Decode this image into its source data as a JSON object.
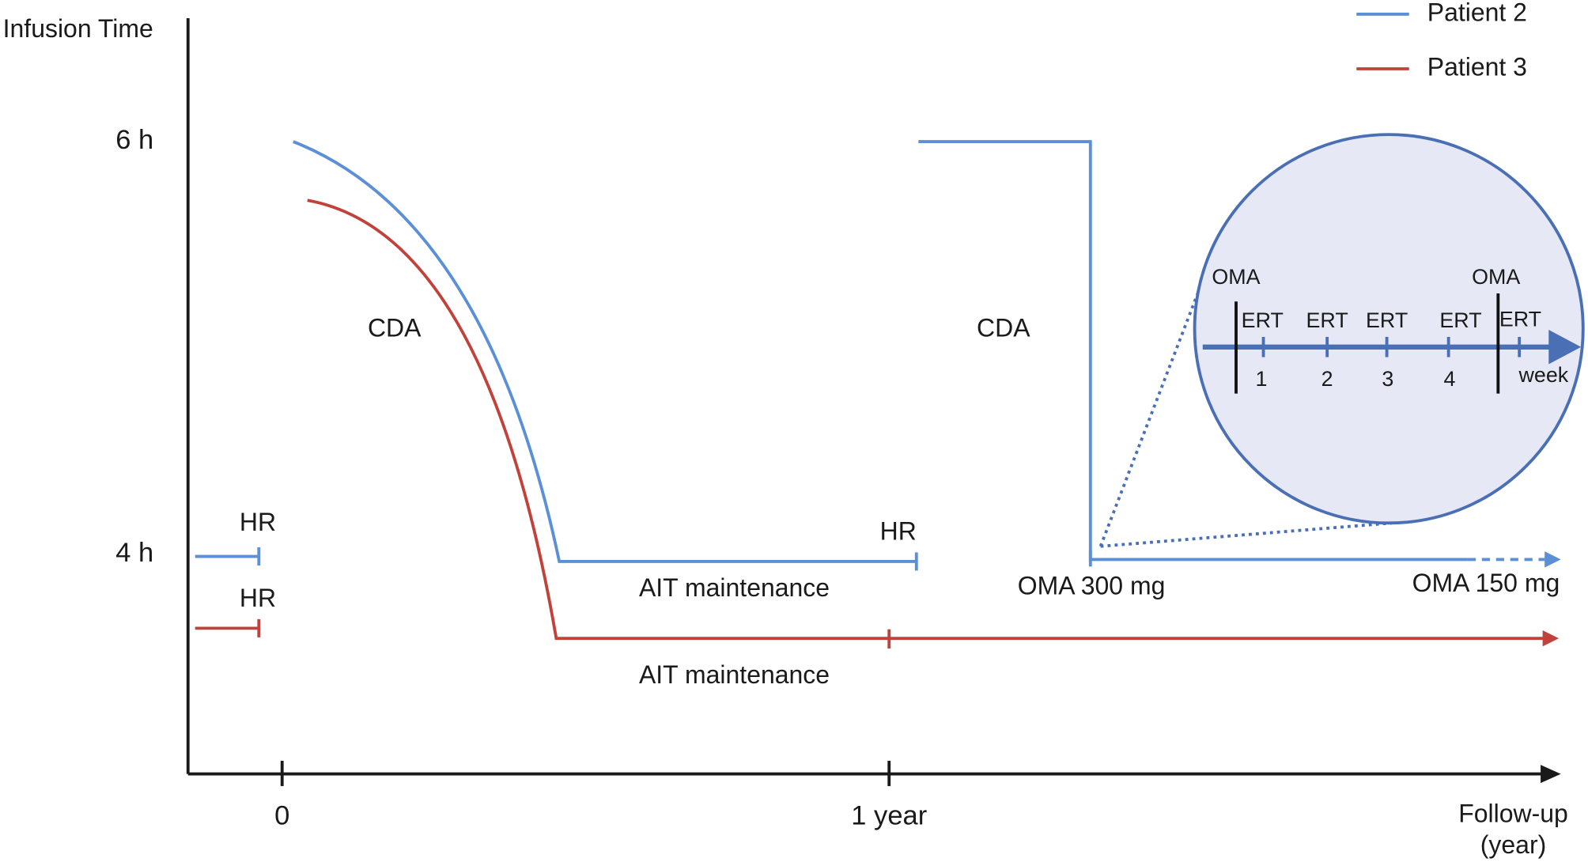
{
  "axes": {
    "y_label": "Infusion Time",
    "y_ticks": [
      "6 h",
      "4 h"
    ],
    "x_ticks": [
      "0",
      "1 year"
    ],
    "x_label": [
      "Follow-up",
      "(year)"
    ]
  },
  "legend": [
    {
      "label": "Patient 2"
    },
    {
      "label": "Patient 3"
    }
  ],
  "annotations": {
    "hr": [
      "HR",
      "HR",
      "HR"
    ],
    "cda": [
      "CDA",
      "CDA"
    ],
    "ait": [
      "AIT maintenance",
      "AIT maintenance"
    ],
    "oma_doses": [
      "OMA 300 mg",
      "OMA 150 mg"
    ]
  },
  "inset": {
    "oma": [
      "OMA",
      "OMA"
    ],
    "ert": [
      "ERT",
      "ERT",
      "ERT",
      "ERT",
      "ERT"
    ],
    "weeks": [
      "1",
      "2",
      "3",
      "4"
    ],
    "unit": "week"
  }
}
